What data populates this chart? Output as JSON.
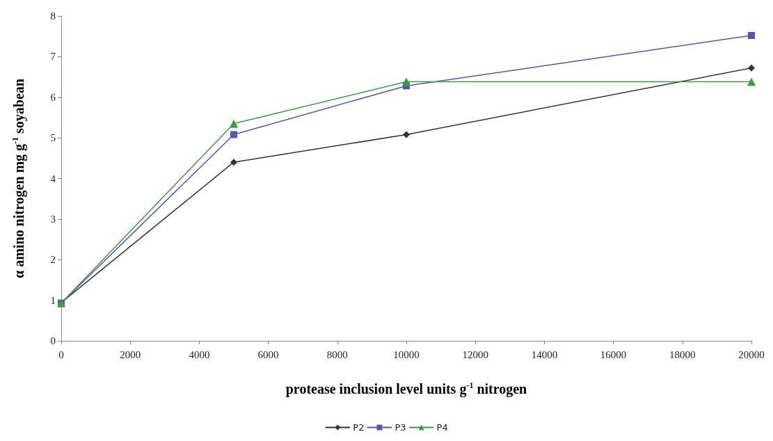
{
  "chart_data": {
    "type": "line",
    "xlabel": "protease inclusion level units g$^{-1}$ nitrogen",
    "ylabel": "α amino nitrogen mg g$^{-1}$ soyabean",
    "x": [
      0,
      5000,
      10000,
      20000
    ],
    "series": [
      {
        "name": "P2",
        "color": "#333333",
        "marker": "diamond",
        "values": [
          0.94,
          4.4,
          5.08,
          6.72
        ]
      },
      {
        "name": "P3",
        "color": "#5555b0",
        "marker": "square",
        "values": [
          0.93,
          5.08,
          6.28,
          7.52
        ]
      },
      {
        "name": "P4",
        "color": "#3c9c44",
        "marker": "triangle",
        "values": [
          0.93,
          5.35,
          6.38,
          6.38
        ]
      }
    ],
    "xlim": [
      0,
      20000
    ],
    "xticks": [
      0,
      2000,
      4000,
      6000,
      8000,
      10000,
      12000,
      14000,
      16000,
      18000,
      20000
    ],
    "ylim": [
      0,
      8
    ],
    "yticks": [
      0,
      1,
      2,
      3,
      4,
      5,
      6,
      7,
      8
    ],
    "grid": false,
    "legend": "bottom",
    "line_style": "solid"
  }
}
